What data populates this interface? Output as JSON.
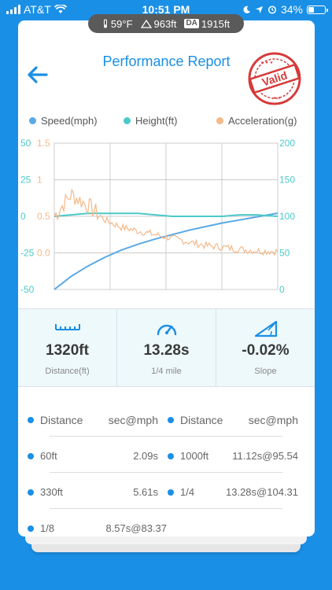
{
  "status_bar": {
    "carrier": "AT&T",
    "time": "10:51 PM",
    "battery": "34%"
  },
  "weather": {
    "temperature": "59°F",
    "altitude": "963ft",
    "da_label": "DA",
    "density_altitude": "1915ft"
  },
  "header": {
    "title": "Performance Report",
    "stamp_text": "Valid"
  },
  "legend": [
    {
      "label": "Speed(mph)",
      "color": "#5aa9e6"
    },
    {
      "label": "Height(ft)",
      "color": "#4cc9c9"
    },
    {
      "label": "Acceleration(g)",
      "color": "#f5b98a"
    }
  ],
  "chart_data": {
    "type": "line",
    "axes": {
      "left_outer": {
        "ticks": [
          "50",
          "25",
          "0",
          "-25",
          "-50"
        ],
        "range": [
          -50,
          50
        ],
        "color": "#4cc9c9",
        "series": "Height(ft)"
      },
      "left_inner": {
        "ticks": [
          "1.5",
          "1",
          "0.5",
          "0.0"
        ],
        "range": [
          -0.5,
          1.5
        ],
        "color": "#f5b98a",
        "series": "Acceleration(g)"
      },
      "right": {
        "ticks": [
          "200",
          "150",
          "100",
          "50",
          "0"
        ],
        "range": [
          0,
          200
        ],
        "color": "#4cc9c9",
        "series": "Speed(mph)"
      }
    },
    "x": [
      0,
      1,
      2,
      3,
      4,
      5,
      6,
      7,
      8,
      9,
      10,
      11,
      12,
      13.28
    ],
    "series": [
      {
        "name": "Speed(mph)",
        "axis": "right",
        "color": "#5aa9e6",
        "values": [
          0,
          18,
          32,
          44,
          54,
          62,
          69,
          75,
          81,
          86,
          91,
          95,
          99,
          104.31
        ]
      },
      {
        "name": "Height(ft)",
        "axis": "left_outer",
        "color": "#4cc9c9",
        "values": [
          0,
          1,
          2,
          2,
          2,
          2,
          1,
          0,
          0,
          0,
          0,
          1,
          1,
          0
        ]
      },
      {
        "name": "Acceleration(g)",
        "axis": "left_inner",
        "color": "#f5b98a",
        "values": [
          0.5,
          0.8,
          0.65,
          0.45,
          0.35,
          0.3,
          0.25,
          0.2,
          0.15,
          0.1,
          0.08,
          0.05,
          0.03,
          0.02
        ]
      }
    ],
    "grid": true
  },
  "stats": [
    {
      "icon": "ruler-icon",
      "value": "1320ft",
      "label": "Distance(ft)"
    },
    {
      "icon": "speedometer-icon",
      "value": "13.28s",
      "label": "1/4 mile"
    },
    {
      "icon": "slope-icon",
      "value": "-0.02%",
      "label": "Slope"
    }
  ],
  "splits": {
    "header": {
      "distance": "Distance",
      "value": "sec@mph"
    },
    "rows": [
      [
        {
          "distance": "60ft",
          "value": "2.09s"
        },
        {
          "distance": "1000ft",
          "value": "11.12s@95.54"
        }
      ],
      [
        {
          "distance": "330ft",
          "value": "5.61s"
        },
        {
          "distance": "1/4",
          "value": "13.28s@104.31"
        }
      ],
      [
        {
          "distance": "1/8",
          "value": "8.57s@83.37"
        }
      ]
    ]
  }
}
